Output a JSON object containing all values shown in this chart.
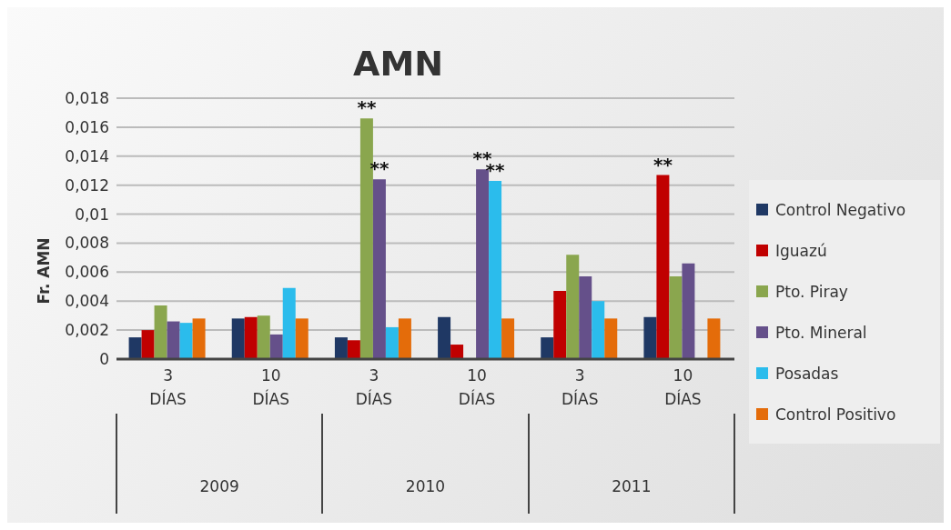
{
  "chart_data": {
    "type": "bar",
    "title": "AMN",
    "ylabel": "Fr. AMN",
    "categories": [
      "3 DÍAS",
      "10 DÍAS",
      "3 DÍAS",
      "10 DÍAS",
      "3 DÍAS",
      "10 DÍAS"
    ],
    "annotations": [
      "2009",
      "2010",
      "2011"
    ],
    "series": [
      {
        "name": "Control Negativo",
        "color": "#1f3864",
        "values": [
          0.0015,
          0.0028,
          0.0015,
          0.0029,
          0.0015,
          0.0029
        ],
        "value_labels": [
          null,
          null,
          null,
          null,
          null,
          null
        ]
      },
      {
        "name": "Iguazú",
        "color": "#c00000",
        "values": [
          0.002,
          0.0029,
          0.0013,
          0.001,
          0.0047,
          0.0127
        ],
        "value_labels": [
          null,
          null,
          null,
          null,
          null,
          "**"
        ]
      },
      {
        "name": "Pto. Piray",
        "color": "#8aa64e",
        "values": [
          0.0037,
          0.003,
          0.0166,
          null,
          0.0072,
          0.0057
        ],
        "value_labels": [
          null,
          null,
          "**",
          null,
          null,
          null
        ]
      },
      {
        "name": "Pto. Mineral",
        "color": "#65508a",
        "values": [
          0.0026,
          0.0017,
          0.0124,
          0.0131,
          0.0057,
          0.0066
        ],
        "value_labels": [
          null,
          null,
          "**",
          "**",
          null,
          null
        ]
      },
      {
        "name": "Posadas",
        "color": "#2bbcec",
        "values": [
          0.0025,
          0.0049,
          0.0022,
          0.0123,
          0.004,
          null
        ],
        "value_labels": [
          null,
          null,
          null,
          "**",
          null,
          null
        ]
      },
      {
        "name": "Control Positivo",
        "color": "#e46c0a",
        "values": [
          0.0028,
          0.0028,
          0.0028,
          0.0028,
          0.0028,
          0.0028
        ],
        "value_labels": [
          null,
          null,
          null,
          null,
          null,
          null
        ]
      }
    ],
    "ylim": [
      0,
      0.018
    ],
    "yticks": [
      0,
      {
        "value": 0.002,
        "label": "0,002"
      },
      {
        "value": 0.004,
        "label": "0,004"
      },
      {
        "value": 0.006,
        "label": "0,006"
      },
      {
        "value": 0.008,
        "label": "0,008"
      },
      {
        "value": 0.01,
        "label": "0,01"
      },
      {
        "value": 0.012,
        "label": "0,012"
      },
      {
        "value": 0.014,
        "label": "0,014"
      },
      {
        "value": 0.016,
        "label": "0,016"
      },
      {
        "value": 0.018,
        "label": "0,018"
      }
    ],
    "grid": "y",
    "legend": "right"
  }
}
